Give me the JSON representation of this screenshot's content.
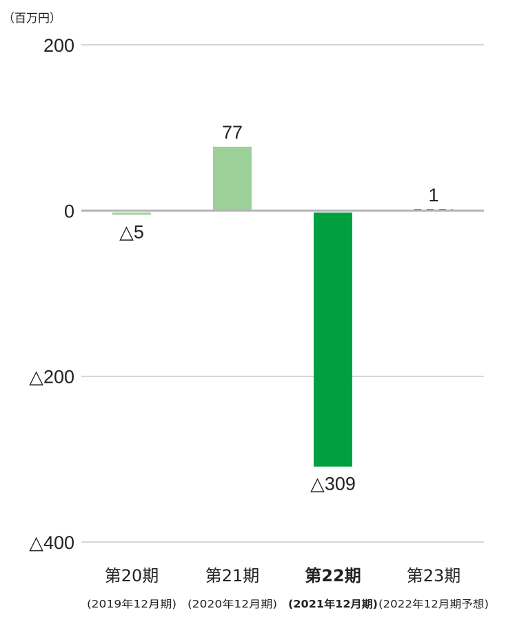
{
  "unit_label": "（百万円）",
  "chart_data": {
    "type": "bar",
    "categories": [
      "第20期",
      "第21期",
      "第22期",
      "第23期"
    ],
    "subcategories": [
      "(2019年12月期)",
      "(2020年12月期)",
      "(2021年12月期)",
      "(2022年12月期予想)"
    ],
    "values": [
      -5,
      77,
      -309,
      1
    ],
    "value_labels": [
      "△5",
      "77",
      "△309",
      "1"
    ],
    "highlight_index": 2,
    "forecast_index": 3,
    "ylim": [
      -400,
      200
    ],
    "yticks": [
      200,
      0,
      -200,
      -400
    ],
    "ytick_labels": [
      "200",
      "0",
      "△200",
      "△400"
    ],
    "grid": true,
    "colors": {
      "light_bar": "#9dcf99",
      "dark_bar": "#00a040",
      "forecast": "#00a040",
      "gridline": "#c8c8c8",
      "zero_line": "#b4b4b4"
    }
  }
}
